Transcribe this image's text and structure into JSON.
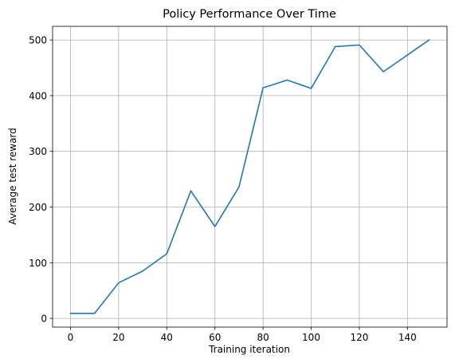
{
  "chart_data": {
    "type": "line",
    "title": "Policy Performance Over Time",
    "xlabel": "Training iteration",
    "ylabel": "Average test reward",
    "xlim": [
      -7.45,
      156.45
    ],
    "ylim": [
      -15.6,
      524.5
    ],
    "xticks": [
      0,
      20,
      40,
      60,
      80,
      100,
      120,
      140
    ],
    "yticks": [
      0,
      100,
      200,
      300,
      400,
      500
    ],
    "grid": true,
    "line_color": "#1f77b4",
    "series": [
      {
        "x": [
          0,
          10,
          20,
          30,
          40,
          50,
          60,
          70,
          80,
          90,
          100,
          110,
          120,
          130,
          140,
          149
        ],
        "values": [
          9,
          9,
          64,
          85,
          116,
          229,
          165,
          236,
          414,
          428,
          413,
          488,
          491,
          443,
          473,
          500
        ]
      }
    ]
  }
}
